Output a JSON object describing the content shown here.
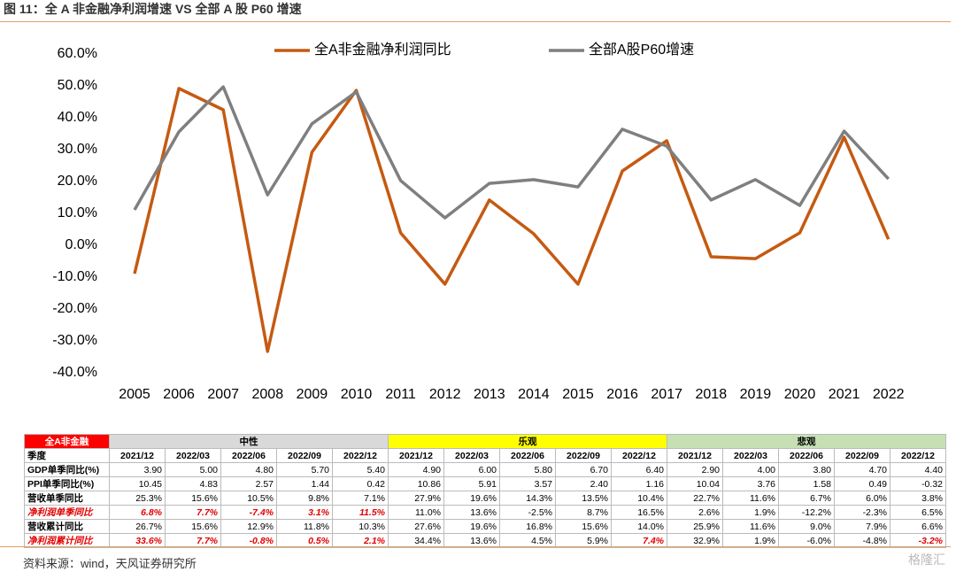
{
  "title": "图 11：全 A 非金融净利润增速 VS 全部 A 股 P60 增速",
  "chart_data": {
    "type": "line",
    "categories": [
      "2005",
      "2006",
      "2007",
      "2008",
      "2009",
      "2010",
      "2011",
      "2012",
      "2013",
      "2014",
      "2015",
      "2016",
      "2017",
      "2018",
      "2019",
      "2020",
      "2021",
      "2022"
    ],
    "series": [
      {
        "name": "全A非金融净利润同比",
        "color": "#c55a11",
        "values": [
          -8.9,
          49.2,
          42.5,
          -33.3,
          29.2,
          48.6,
          3.9,
          -12.2,
          14.2,
          3.6,
          -12.2,
          23.3,
          32.8,
          -3.6,
          -4.2,
          3.9,
          33.9,
          1.9
        ]
      },
      {
        "name": "全部A股P60增速",
        "color": "#7f7f7f",
        "values": [
          11.1,
          35.6,
          49.7,
          15.8,
          38.1,
          48.1,
          20.3,
          8.6,
          19.4,
          20.6,
          18.3,
          36.4,
          31.1,
          14.2,
          20.6,
          12.5,
          35.8,
          20.8
        ]
      }
    ],
    "ylim": [
      -40,
      60
    ],
    "yticks": [
      {
        "value": 60,
        "label": "60.0%"
      },
      {
        "value": 50,
        "label": "50.0%"
      },
      {
        "value": 40,
        "label": "40.0%"
      },
      {
        "value": 30,
        "label": "30.0%"
      },
      {
        "value": 20,
        "label": "20.0%"
      },
      {
        "value": 10,
        "label": "10.0%"
      },
      {
        "value": 0,
        "label": "0.0%"
      },
      {
        "value": -10,
        "label": "-10.0%"
      },
      {
        "value": -20,
        "label": "-20.0%"
      },
      {
        "value": -30,
        "label": "-30.0%"
      },
      {
        "value": -40,
        "label": "-40.0%"
      }
    ],
    "grid": false,
    "legend": "top"
  },
  "table": {
    "corner": "全A非金融",
    "groups": [
      "中性",
      "乐观",
      "悲观"
    ],
    "rows": [
      {
        "label": "季度",
        "cells": [
          "2021/12",
          "2022/03",
          "2022/06",
          "2022/09",
          "2022/12",
          "2021/12",
          "2022/03",
          "2022/06",
          "2022/09",
          "2022/12",
          "2021/12",
          "2022/03",
          "2022/06",
          "2022/09",
          "2022/12"
        ]
      },
      {
        "label": "GDP单季同比(%)",
        "cells": [
          "3.90",
          "5.00",
          "4.80",
          "5.70",
          "5.40",
          "4.90",
          "6.00",
          "5.80",
          "6.70",
          "6.40",
          "2.90",
          "4.00",
          "3.80",
          "4.70",
          "4.40"
        ]
      },
      {
        "label": "PPI单季同比(%)",
        "cells": [
          "10.45",
          "4.83",
          "2.57",
          "1.44",
          "0.42",
          "10.86",
          "5.91",
          "3.57",
          "2.40",
          "1.16",
          "10.04",
          "3.76",
          "1.58",
          "0.49",
          "-0.32"
        ]
      },
      {
        "label": "营收单季同比",
        "cells": [
          "25.3%",
          "15.6%",
          "10.5%",
          "9.8%",
          "7.1%",
          "27.9%",
          "19.6%",
          "14.3%",
          "13.5%",
          "10.4%",
          "22.7%",
          "11.6%",
          "6.7%",
          "6.0%",
          "3.8%"
        ]
      },
      {
        "label": "净利润单季同比",
        "cells": [
          "6.8%",
          "7.7%",
          "-7.4%",
          "3.1%",
          "11.5%",
          "11.0%",
          "13.6%",
          "-2.5%",
          "8.7%",
          "16.5%",
          "2.6%",
          "1.9%",
          "-12.2%",
          "-2.3%",
          "6.5%"
        ]
      },
      {
        "label": "营收累计同比",
        "cells": [
          "26.7%",
          "15.6%",
          "12.9%",
          "11.8%",
          "10.3%",
          "27.6%",
          "19.6%",
          "16.8%",
          "15.6%",
          "14.0%",
          "25.9%",
          "11.6%",
          "9.0%",
          "7.9%",
          "6.6%"
        ]
      },
      {
        "label": "净利润累计同比",
        "cells": [
          "33.6%",
          "7.7%",
          "-0.8%",
          "0.5%",
          "2.1%",
          "34.4%",
          "13.6%",
          "4.5%",
          "5.9%",
          "7.4%",
          "32.9%",
          "1.9%",
          "-6.0%",
          "-4.8%",
          "-3.2%"
        ]
      }
    ]
  },
  "source": "资料来源：wind，天风证券研究所",
  "watermark": "格隆汇"
}
